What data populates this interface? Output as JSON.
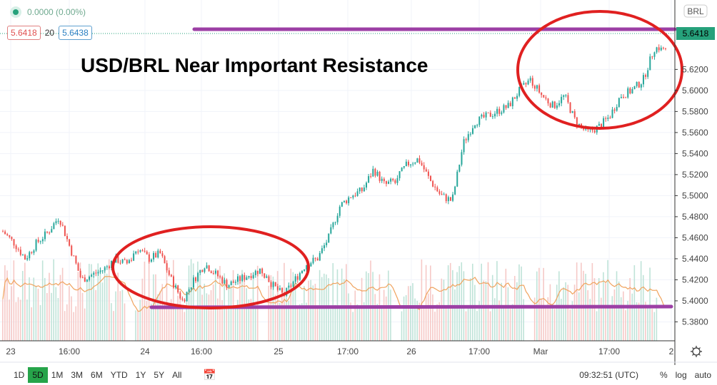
{
  "header": {
    "change": "0.0000 (0.00%)",
    "bid": "5.6418",
    "spread": "20",
    "ask": "5.6438",
    "currency": "BRL"
  },
  "annotation_title": "USD/BRL Near Important Resistance",
  "bottom": {
    "ranges": [
      "1D",
      "5D",
      "1M",
      "3M",
      "6M",
      "YTD",
      "1Y",
      "5Y",
      "All"
    ],
    "selected": "5D",
    "clock": "09:32:51 (UTC)",
    "percent": "%",
    "log": "log",
    "auto": "auto"
  },
  "colors": {
    "up": "#26a69a",
    "down": "#ef5350",
    "volume_up": "#bfe3d8",
    "volume_down": "#f6c9c7",
    "volume_ma": "#f0a35e",
    "resistance": "#9c3fa5",
    "ellipse": "#e02020",
    "last_price": "#26a17b"
  },
  "chart_data": {
    "type": "candlestick",
    "symbol": "USD/BRL",
    "x_ticks": [
      "23",
      "16:00",
      "24",
      "16:00",
      "25",
      "17:00",
      "26",
      "17:00",
      "Mar",
      "17:00",
      "2"
    ],
    "y_ticks": [
      "5.3800",
      "5.4000",
      "5.4200",
      "5.4400",
      "5.4600",
      "5.4800",
      "5.5000",
      "5.5200",
      "5.5400",
      "5.5600",
      "5.5800",
      "5.6000",
      "5.6200"
    ],
    "ylim": [
      5.362,
      5.686
    ],
    "last_price": "5.6418",
    "close_path": [
      5.466,
      5.455,
      5.44,
      5.455,
      5.465,
      5.48,
      5.45,
      5.42,
      5.425,
      5.43,
      5.44,
      5.435,
      5.45,
      5.44,
      5.445,
      5.42,
      5.4,
      5.42,
      5.435,
      5.425,
      5.415,
      5.42,
      5.425,
      5.43,
      5.415,
      5.405,
      5.42,
      5.435,
      5.44,
      5.46,
      5.49,
      5.5,
      5.505,
      5.525,
      5.51,
      5.515,
      5.53,
      5.535,
      5.515,
      5.5,
      5.495,
      5.55,
      5.57,
      5.575,
      5.58,
      5.585,
      5.6,
      5.61,
      5.595,
      5.585,
      5.595,
      5.57,
      5.56,
      5.565,
      5.575,
      5.595,
      5.6,
      5.61,
      5.64,
      5.6418
    ],
    "resistance_level": 5.6438,
    "support_level": 5.391,
    "grid": true
  }
}
